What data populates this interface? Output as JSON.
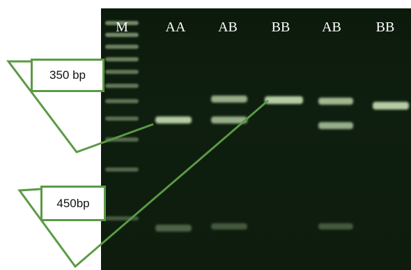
{
  "lanes": [
    {
      "label": "M",
      "bands": []
    },
    {
      "label": "AA",
      "bands": [
        "350bp"
      ]
    },
    {
      "label": "AB",
      "bands": [
        "450bp",
        "350bp"
      ]
    },
    {
      "label": "BB",
      "bands": [
        "450bp"
      ]
    },
    {
      "label": "AB",
      "bands": [
        "450bp",
        "350bp"
      ]
    },
    {
      "label": "BB",
      "bands": [
        "450bp"
      ]
    }
  ],
  "callouts": {
    "upper": "350 bp",
    "lower": "450bp"
  },
  "colors": {
    "gel_background": "#0f1f0f",
    "band": "#c8e6b4",
    "callout_line": "#5a9a44"
  }
}
